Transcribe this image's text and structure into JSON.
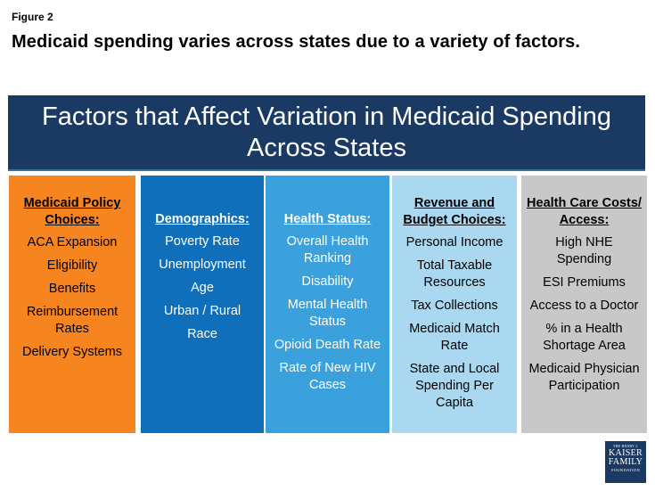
{
  "figure_label": "Figure 2",
  "title": "Medicaid spending varies across states due to a variety of factors.",
  "banner": "Factors that Affect Variation in Medicaid Spending Across States",
  "columns": [
    {
      "heading": "Medicaid Policy Choices:",
      "color": "#f7851f",
      "items": [
        "ACA Expansion",
        "Eligibility",
        "Benefits",
        "Reimbursement Rates",
        "Delivery Systems"
      ]
    },
    {
      "heading": "Demographics:",
      "color": "#0f6fba",
      "items": [
        "Poverty Rate",
        "Unemployment",
        "Age",
        "Urban / Rural",
        "Race"
      ]
    },
    {
      "heading": "Health Status:",
      "color": "#3aa1dc",
      "items": [
        "Overall Health Ranking",
        "Disability",
        "Mental Health Status",
        "Opioid Death Rate",
        "Rate of New HIV Cases"
      ]
    },
    {
      "heading": "Revenue and Budget Choices:",
      "color": "#a9d8f0",
      "items": [
        "Personal Income",
        "Total Taxable Resources",
        "Tax Collections",
        "Medicaid Match Rate",
        "State and Local Spending Per Capita"
      ]
    },
    {
      "heading": "Health Care Costs/ Access:",
      "color": "#c8c8c8",
      "items": [
        "High NHE Spending",
        "ESI Premiums",
        "Access to a Doctor",
        "% in a Health Shortage Area",
        "Medicaid Physician Participation"
      ]
    }
  ],
  "logo": {
    "line0": "THE HENRY J.",
    "line1": "KAISER",
    "line2": "FAMILY",
    "line3": "FOUNDATION"
  }
}
